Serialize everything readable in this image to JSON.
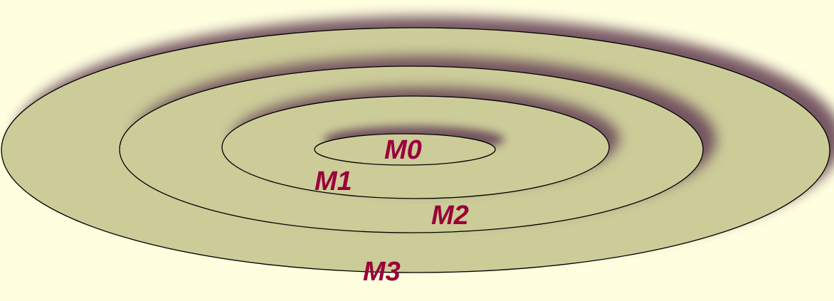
{
  "colors": {
    "background": "#ffffe0",
    "ellipse_fill": "#cccc99",
    "outline": "#000000",
    "shadow": "#6e4e5c",
    "label": "#99003a"
  },
  "diagram": {
    "type": "nested-ellipses",
    "levels": [
      {
        "label": "M0"
      },
      {
        "label": "M1"
      },
      {
        "label": "M2"
      },
      {
        "label": "M3"
      }
    ]
  }
}
